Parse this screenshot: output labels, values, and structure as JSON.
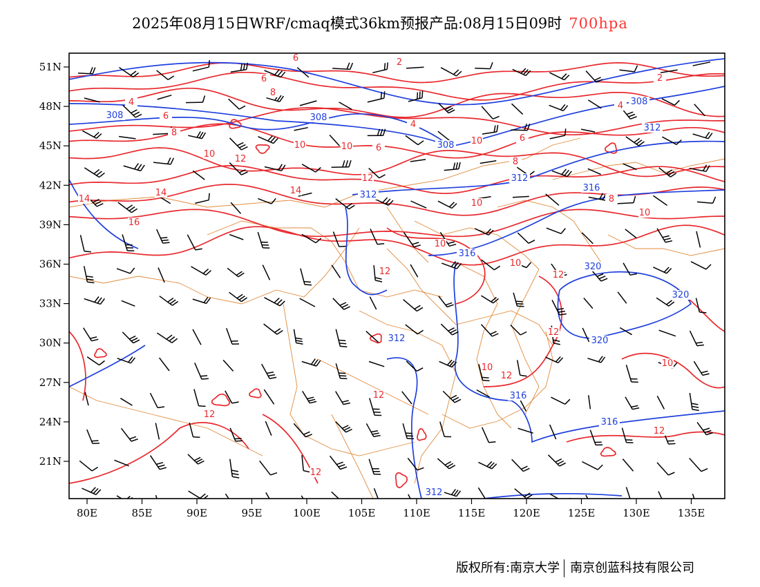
{
  "title": {
    "main": "2025年08月15日WRF/cmaq模式36km预报产品:08月15日09时",
    "level": "700hpa"
  },
  "colors": {
    "frame": "#000000",
    "temperature": "#e8282d",
    "geopotential": "#1e3fdd",
    "boundary": "#e08a3a",
    "wind": "#000000",
    "level_text": "#ff3333"
  },
  "axes": {
    "lon_labels": [
      "80E",
      "85E",
      "90E",
      "95E",
      "100E",
      "105E",
      "110E",
      "115E",
      "120E",
      "125E",
      "130E",
      "135E"
    ],
    "lat_labels": [
      "51N",
      "48N",
      "45N",
      "42N",
      "39N",
      "36N",
      "33N",
      "30N",
      "27N",
      "24N",
      "21N"
    ]
  },
  "temperature_labels": [
    "2",
    "2",
    "4",
    "4",
    "4",
    "6",
    "6",
    "6",
    "6",
    "6",
    "8",
    "8",
    "8",
    "8",
    "10",
    "10",
    "10",
    "10",
    "10",
    "10",
    "10",
    "10",
    "10",
    "10",
    "12",
    "12",
    "12",
    "12",
    "12",
    "12",
    "12",
    "12",
    "12",
    "12",
    "14",
    "14",
    "14",
    "16"
  ],
  "geopotential_labels": [
    "308",
    "308",
    "308",
    "308",
    "312",
    "312",
    "312",
    "312",
    "312",
    "316",
    "316",
    "316",
    "316",
    "320",
    "320",
    "320"
  ],
  "footer": {
    "left": "版权所有:南京大学",
    "right": "南京创蓝科技有限公司"
  }
}
